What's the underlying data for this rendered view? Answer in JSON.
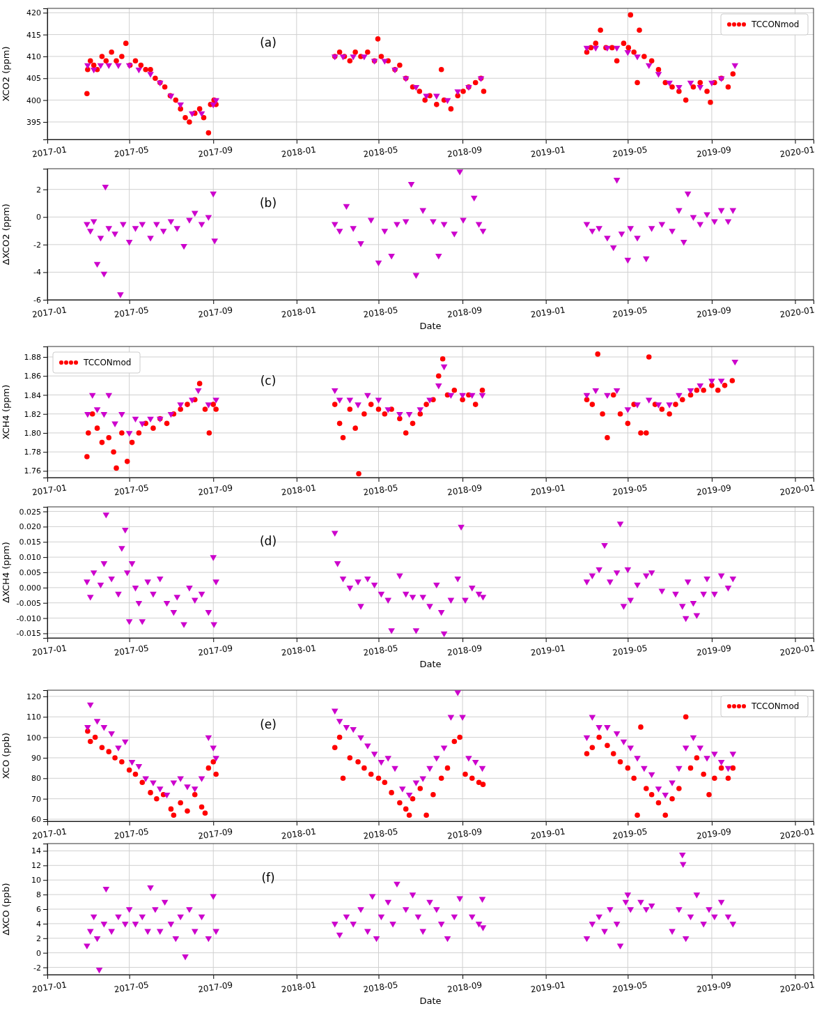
{
  "chart_data": [
    {
      "type": "scatter",
      "ylabel": "XCO2 (ppm)",
      "annotations": [
        "(a)"
      ],
      "xlim": [
        "2017-01-01",
        "2020-01-28"
      ],
      "ylim": [
        391,
        421
      ],
      "xticks": [
        "2017-01",
        "2017-05",
        "2017-09",
        "2018-01",
        "2018-05",
        "2018-09",
        "2019-01",
        "2019-05",
        "2019-09",
        "2020-01"
      ],
      "yticks": [
        395,
        400,
        405,
        410,
        415,
        420
      ],
      "grid": true,
      "legend": "top right",
      "series": [
        {
          "name": "TCCONmod",
          "color": "#ff0000",
          "marker": "circle",
          "x": [
            "2017-02-28",
            "2017-03-01",
            "2017-03-05",
            "2017-03-10",
            "2017-03-15",
            "2017-03-22",
            "2017-03-28",
            "2017-04-05",
            "2017-04-12",
            "2017-04-20",
            "2017-04-26",
            "2017-05-02",
            "2017-05-10",
            "2017-05-18",
            "2017-05-25",
            "2017-06-01",
            "2017-06-08",
            "2017-06-15",
            "2017-06-22",
            "2017-06-30",
            "2017-07-08",
            "2017-07-15",
            "2017-07-22",
            "2017-07-28",
            "2017-08-05",
            "2017-08-12",
            "2017-08-18",
            "2017-08-25",
            "2017-08-28",
            "2017-09-02",
            "2017-09-05",
            "2018-02-26",
            "2018-03-05",
            "2018-03-12",
            "2018-03-20",
            "2018-03-28",
            "2018-04-05",
            "2018-04-15",
            "2018-04-25",
            "2018-04-30",
            "2018-05-05",
            "2018-05-15",
            "2018-05-25",
            "2018-06-01",
            "2018-06-10",
            "2018-06-20",
            "2018-06-30",
            "2018-07-08",
            "2018-07-15",
            "2018-07-25",
            "2018-08-01",
            "2018-08-05",
            "2018-08-15",
            "2018-08-25",
            "2018-09-02",
            "2018-09-10",
            "2018-09-20",
            "2018-09-28",
            "2018-10-02",
            "2019-03-02",
            "2019-03-08",
            "2019-03-15",
            "2019-03-22",
            "2019-03-30",
            "2019-04-08",
            "2019-04-15",
            "2019-04-25",
            "2019-05-02",
            "2019-05-05",
            "2019-05-10",
            "2019-05-15",
            "2019-05-18",
            "2019-05-25",
            "2019-06-05",
            "2019-06-15",
            "2019-06-25",
            "2019-07-05",
            "2019-07-15",
            "2019-07-25",
            "2019-08-05",
            "2019-08-15",
            "2019-08-25",
            "2019-08-30",
            "2019-09-05",
            "2019-09-15",
            "2019-09-25",
            "2019-10-02"
          ],
          "values": [
            401.5,
            407,
            409,
            408,
            407,
            410,
            409,
            411,
            409,
            410,
            413,
            408,
            409,
            408,
            407,
            407,
            405,
            404,
            403,
            401,
            400,
            398,
            396,
            395,
            397,
            398,
            396,
            392.5,
            399,
            400,
            399,
            410,
            411,
            410,
            409,
            411,
            410,
            411,
            409,
            414,
            410,
            409,
            407,
            408,
            405,
            403,
            402,
            400,
            401,
            399,
            407,
            400,
            398,
            401,
            402,
            403,
            404,
            405,
            402,
            411,
            412,
            413,
            416,
            412,
            412,
            409,
            413,
            412,
            419.5,
            411,
            404,
            416,
            410,
            409,
            407,
            404,
            403,
            402,
            400,
            403,
            404,
            402,
            399.5,
            404,
            405,
            403,
            406
          ]
        },
        {
          "color": "#cc00cc",
          "marker": "triangle",
          "x": [
            "2017-03-01",
            "2017-03-10",
            "2017-03-20",
            "2017-04-01",
            "2017-04-15",
            "2017-05-01",
            "2017-05-15",
            "2017-06-01",
            "2017-06-15",
            "2017-07-01",
            "2017-07-15",
            "2017-08-01",
            "2017-08-15",
            "2017-09-01",
            "2017-09-05",
            "2018-02-26",
            "2018-03-10",
            "2018-03-25",
            "2018-04-10",
            "2018-04-25",
            "2018-05-10",
            "2018-05-25",
            "2018-06-10",
            "2018-06-25",
            "2018-07-10",
            "2018-07-25",
            "2018-08-10",
            "2018-08-25",
            "2018-09-10",
            "2018-09-28",
            "2019-03-02",
            "2019-03-15",
            "2019-04-01",
            "2019-04-15",
            "2019-05-01",
            "2019-05-15",
            "2019-06-01",
            "2019-06-15",
            "2019-07-01",
            "2019-07-15",
            "2019-08-01",
            "2019-08-15",
            "2019-09-01",
            "2019-09-15",
            "2019-10-05"
          ],
          "values": [
            408,
            407,
            408,
            408,
            408,
            408,
            407,
            406,
            404,
            401,
            399,
            397,
            397,
            399,
            400,
            410,
            410,
            410,
            410,
            409,
            409,
            407,
            405,
            403,
            401,
            401,
            400,
            402,
            403,
            405,
            412,
            412,
            412,
            412,
            411,
            410,
            408,
            406,
            404,
            403,
            404,
            403,
            404,
            405,
            408
          ]
        }
      ]
    },
    {
      "type": "scatter",
      "ylabel": "ΔXCO2 (ppm)",
      "xlabel": "Date",
      "annotations": [
        "(b)"
      ],
      "xlim": [
        "2017-01-01",
        "2020-01-28"
      ],
      "ylim": [
        -6,
        3.5
      ],
      "xticks": [
        "2017-01",
        "2017-05",
        "2017-09",
        "2018-01",
        "2018-05",
        "2018-09",
        "2019-01",
        "2019-05",
        "2019-09",
        "2020-01"
      ],
      "yticks": [
        -6,
        -4,
        -2,
        0,
        2
      ],
      "grid": true,
      "series": [
        {
          "color": "#cc00cc",
          "marker": "triangle",
          "x": [
            "2017-02-28",
            "2017-03-05",
            "2017-03-10",
            "2017-03-15",
            "2017-03-20",
            "2017-03-25",
            "2017-03-27",
            "2017-04-01",
            "2017-04-10",
            "2017-04-18",
            "2017-04-22",
            "2017-05-01",
            "2017-05-10",
            "2017-05-20",
            "2017-06-01",
            "2017-06-10",
            "2017-06-20",
            "2017-07-01",
            "2017-07-10",
            "2017-07-20",
            "2017-07-28",
            "2017-08-05",
            "2017-08-15",
            "2017-08-25",
            "2017-09-01",
            "2017-09-03",
            "2018-02-26",
            "2018-03-05",
            "2018-03-15",
            "2018-03-25",
            "2018-04-05",
            "2018-04-20",
            "2018-05-01",
            "2018-05-10",
            "2018-05-20",
            "2018-05-28",
            "2018-06-10",
            "2018-06-18",
            "2018-06-25",
            "2018-07-05",
            "2018-07-20",
            "2018-07-28",
            "2018-08-05",
            "2018-08-20",
            "2018-08-28",
            "2018-09-02",
            "2018-09-18",
            "2018-09-25",
            "2018-10-01",
            "2019-03-02",
            "2019-03-10",
            "2019-03-20",
            "2019-04-01",
            "2019-04-10",
            "2019-04-15",
            "2019-04-22",
            "2019-05-01",
            "2019-05-05",
            "2019-05-15",
            "2019-05-28",
            "2019-06-05",
            "2019-06-20",
            "2019-07-05",
            "2019-07-15",
            "2019-07-22",
            "2019-07-28",
            "2019-08-05",
            "2019-08-15",
            "2019-08-25",
            "2019-09-05",
            "2019-09-15",
            "2019-09-25",
            "2019-10-02"
          ],
          "values": [
            -0.5,
            -1,
            -0.3,
            -3.4,
            -1.5,
            -4.1,
            2.2,
            -0.8,
            -1.2,
            -5.6,
            -0.5,
            -1.8,
            -0.8,
            -0.5,
            -1.5,
            -0.5,
            -1,
            -0.3,
            -0.8,
            -2.1,
            -0.2,
            0.3,
            -0.5,
            0,
            1.7,
            -1.7,
            -0.5,
            -1,
            0.8,
            -0.8,
            -1.9,
            -0.2,
            -3.3,
            -1,
            -2.8,
            -0.5,
            -0.3,
            2.4,
            -4.2,
            0.5,
            -0.3,
            -2.8,
            -0.5,
            -1.2,
            3.3,
            -0.2,
            1.4,
            -0.5,
            -1,
            -0.5,
            -1,
            -0.8,
            -1.5,
            -2.2,
            2.7,
            -1.2,
            -3.1,
            -0.8,
            -1.5,
            -3,
            -0.8,
            -0.5,
            -1,
            0.5,
            -1.8,
            1.7,
            0,
            -0.5,
            0.2,
            -0.3,
            0.5,
            -0.3,
            0.5
          ]
        }
      ]
    },
    {
      "type": "scatter",
      "ylabel": "XCH4 (ppm)",
      "annotations": [
        "(c)"
      ],
      "xlim": [
        "2017-01-01",
        "2020-01-28"
      ],
      "ylim": [
        1.753,
        1.891
      ],
      "xticks": [
        "2017-01",
        "2017-05",
        "2017-09",
        "2018-01",
        "2018-05",
        "2018-09",
        "2019-01",
        "2019-05",
        "2019-09",
        "2020-01"
      ],
      "yticks": [
        1.76,
        1.78,
        {
          "value": 1.8,
          "label": "1.80"
        },
        1.82,
        1.84,
        1.86,
        1.88
      ],
      "grid": true,
      "legend": "top left",
      "series": [
        {
          "name": "TCCONmod",
          "color": "#ff0000",
          "marker": "circle",
          "x": [
            "2017-02-28",
            "2017-03-02",
            "2017-03-08",
            "2017-03-15",
            "2017-03-22",
            "2017-04-01",
            "2017-04-08",
            "2017-04-12",
            "2017-04-20",
            "2017-04-28",
            "2017-05-05",
            "2017-05-15",
            "2017-05-25",
            "2017-06-05",
            "2017-06-15",
            "2017-06-25",
            "2017-07-05",
            "2017-07-15",
            "2017-07-25",
            "2017-08-05",
            "2017-08-12",
            "2017-08-20",
            "2017-08-26",
            "2017-09-01",
            "2017-09-05",
            "2018-02-26",
            "2018-03-05",
            "2018-03-10",
            "2018-03-20",
            "2018-03-28",
            "2018-04-02",
            "2018-04-10",
            "2018-04-20",
            "2018-05-01",
            "2018-05-10",
            "2018-05-20",
            "2018-06-01",
            "2018-06-10",
            "2018-06-20",
            "2018-07-01",
            "2018-07-10",
            "2018-07-20",
            "2018-07-28",
            "2018-08-03",
            "2018-08-10",
            "2018-08-20",
            "2018-09-01",
            "2018-09-10",
            "2018-09-20",
            "2018-09-30",
            "2019-03-02",
            "2019-03-10",
            "2019-03-18",
            "2019-03-25",
            "2019-04-01",
            "2019-04-10",
            "2019-04-20",
            "2019-05-01",
            "2019-05-10",
            "2019-05-20",
            "2019-05-28",
            "2019-06-01",
            "2019-06-10",
            "2019-06-20",
            "2019-07-01",
            "2019-07-10",
            "2019-07-20",
            "2019-08-01",
            "2019-08-10",
            "2019-08-20",
            "2019-09-01",
            "2019-09-10",
            "2019-09-20",
            "2019-10-01"
          ],
          "values": [
            1.775,
            1.8,
            1.82,
            1.805,
            1.79,
            1.795,
            1.78,
            1.763,
            1.8,
            1.77,
            1.79,
            1.8,
            1.81,
            1.805,
            1.815,
            1.81,
            1.82,
            1.825,
            1.83,
            1.835,
            1.852,
            1.825,
            1.8,
            1.83,
            1.825,
            1.83,
            1.81,
            1.795,
            1.825,
            1.805,
            1.757,
            1.82,
            1.83,
            1.825,
            1.82,
            1.825,
            1.815,
            1.8,
            1.81,
            1.82,
            1.83,
            1.835,
            1.86,
            1.878,
            1.84,
            1.845,
            1.835,
            1.84,
            1.83,
            1.845,
            1.835,
            1.83,
            1.883,
            1.82,
            1.795,
            1.84,
            1.82,
            1.81,
            1.83,
            1.8,
            1.8,
            1.88,
            1.83,
            1.825,
            1.82,
            1.83,
            1.835,
            1.84,
            1.845,
            1.845,
            1.85,
            1.845,
            1.85,
            1.855
          ]
        },
        {
          "color": "#cc00cc",
          "marker": "triangle",
          "x": [
            "2017-03-01",
            "2017-03-08",
            "2017-03-15",
            "2017-03-25",
            "2017-04-01",
            "2017-04-10",
            "2017-04-20",
            "2017-05-01",
            "2017-05-10",
            "2017-05-20",
            "2017-06-01",
            "2017-06-15",
            "2017-07-01",
            "2017-07-15",
            "2017-08-01",
            "2017-08-10",
            "2017-08-25",
            "2017-09-05",
            "2018-02-26",
            "2018-03-05",
            "2018-03-20",
            "2018-04-01",
            "2018-04-15",
            "2018-05-01",
            "2018-05-15",
            "2018-06-01",
            "2018-06-15",
            "2018-07-01",
            "2018-07-15",
            "2018-07-28",
            "2018-08-05",
            "2018-08-15",
            "2018-09-01",
            "2018-09-15",
            "2018-09-30",
            "2019-03-02",
            "2019-03-15",
            "2019-04-01",
            "2019-04-15",
            "2019-05-01",
            "2019-05-15",
            "2019-06-01",
            "2019-06-15",
            "2019-07-01",
            "2019-07-15",
            "2019-08-01",
            "2019-08-15",
            "2019-09-01",
            "2019-09-15",
            "2019-10-05"
          ],
          "values": [
            1.82,
            1.84,
            1.825,
            1.82,
            1.84,
            1.81,
            1.82,
            1.8,
            1.815,
            1.81,
            1.815,
            1.815,
            1.82,
            1.83,
            1.835,
            1.845,
            1.83,
            1.835,
            1.845,
            1.835,
            1.835,
            1.83,
            1.84,
            1.835,
            1.825,
            1.82,
            1.82,
            1.825,
            1.835,
            1.85,
            1.87,
            1.84,
            1.84,
            1.84,
            1.84,
            1.84,
            1.845,
            1.84,
            1.845,
            1.825,
            1.83,
            1.835,
            1.83,
            1.83,
            1.84,
            1.845,
            1.85,
            1.855,
            1.855,
            1.875
          ]
        }
      ]
    },
    {
      "type": "scatter",
      "ylabel": "ΔXCH4 (ppm)",
      "xlabel": "Date",
      "annotations": [
        "(d)"
      ],
      "xlim": [
        "2017-01-01",
        "2020-01-28"
      ],
      "ylim": [
        -0.0165,
        0.0265
      ],
      "xticks": [
        "2017-01",
        "2017-05",
        "2017-09",
        "2018-01",
        "2018-05",
        "2018-09",
        "2019-01",
        "2019-05",
        "2019-09",
        "2020-01"
      ],
      "yticks": [
        {
          "value": -0.015,
          "label": "-0.015"
        },
        {
          "value": -0.01,
          "label": "-0.010"
        },
        {
          "value": -0.005,
          "label": "-0.005"
        },
        {
          "value": 0,
          "label": "0.000"
        },
        {
          "value": 0.005,
          "label": "0.005"
        },
        {
          "value": 0.01,
          "label": "0.010"
        },
        {
          "value": 0.015,
          "label": "0.015"
        },
        {
          "value": 0.02,
          "label": "0.020"
        },
        {
          "value": 0.025,
          "label": "0.025"
        }
      ],
      "grid": true,
      "series": [
        {
          "color": "#cc00cc",
          "marker": "triangle",
          "x": [
            "2017-02-28",
            "2017-03-05",
            "2017-03-10",
            "2017-03-20",
            "2017-03-25",
            "2017-03-28",
            "2017-04-05",
            "2017-04-15",
            "2017-04-20",
            "2017-04-25",
            "2017-04-28",
            "2017-05-01",
            "2017-05-05",
            "2017-05-10",
            "2017-05-15",
            "2017-05-20",
            "2017-05-28",
            "2017-06-05",
            "2017-06-15",
            "2017-06-25",
            "2017-07-05",
            "2017-07-10",
            "2017-07-20",
            "2017-07-28",
            "2017-08-05",
            "2017-08-15",
            "2017-08-25",
            "2017-09-01",
            "2017-09-02",
            "2017-09-05",
            "2018-02-26",
            "2018-03-02",
            "2018-03-10",
            "2018-03-20",
            "2018-04-01",
            "2018-04-05",
            "2018-04-15",
            "2018-04-25",
            "2018-05-05",
            "2018-05-15",
            "2018-05-20",
            "2018-06-01",
            "2018-06-10",
            "2018-06-20",
            "2018-06-25",
            "2018-07-05",
            "2018-07-15",
            "2018-07-25",
            "2018-08-01",
            "2018-08-05",
            "2018-08-15",
            "2018-08-25",
            "2018-08-30",
            "2018-09-05",
            "2018-09-15",
            "2018-09-25",
            "2018-10-01",
            "2019-03-02",
            "2019-03-10",
            "2019-03-20",
            "2019-03-28",
            "2019-04-05",
            "2019-04-15",
            "2019-04-20",
            "2019-04-25",
            "2019-05-01",
            "2019-05-05",
            "2019-05-15",
            "2019-05-28",
            "2019-06-05",
            "2019-06-20",
            "2019-07-10",
            "2019-07-20",
            "2019-07-25",
            "2019-07-28",
            "2019-08-05",
            "2019-08-10",
            "2019-08-20",
            "2019-08-25",
            "2019-09-05",
            "2019-09-15",
            "2019-09-25",
            "2019-10-02"
          ],
          "values": [
            0.002,
            -0.003,
            0.005,
            0.001,
            0.008,
            0.024,
            0.003,
            -0.002,
            0.013,
            0.019,
            0.005,
            -0.011,
            0.008,
            0,
            -0.005,
            -0.011,
            0.002,
            -0.002,
            0.003,
            -0.005,
            -0.008,
            -0.003,
            -0.012,
            0,
            -0.004,
            -0.002,
            -0.008,
            0.01,
            -0.012,
            0.002,
            0.018,
            0.008,
            0.003,
            0,
            0.002,
            -0.006,
            0.003,
            0.001,
            -0.002,
            -0.004,
            -0.014,
            0.004,
            -0.002,
            -0.003,
            -0.014,
            -0.003,
            -0.006,
            0.001,
            -0.008,
            -0.015,
            -0.004,
            0.003,
            0.02,
            -0.004,
            0,
            -0.002,
            -0.003,
            0.002,
            0.004,
            0.006,
            0.014,
            0.002,
            0.005,
            0.021,
            -0.006,
            0.006,
            -0.004,
            0.001,
            0.004,
            0.005,
            -0.001,
            -0.002,
            -0.006,
            -0.01,
            0.002,
            -0.005,
            -0.009,
            -0.002,
            0.003,
            -0.002,
            0.004,
            0,
            0.003
          ]
        }
      ]
    },
    {
      "type": "scatter",
      "ylabel": "XCO (ppb)",
      "annotations": [
        "(e)"
      ],
      "xlim": [
        "2017-01-01",
        "2020-01-28"
      ],
      "ylim": [
        59,
        123
      ],
      "xticks": [
        "2017-01",
        "2017-05",
        "2017-09",
        "2018-01",
        "2018-05",
        "2018-09",
        "2019-01",
        "2019-05",
        "2019-09",
        "2020-01"
      ],
      "yticks": [
        60,
        70,
        80,
        90,
        100,
        110,
        120
      ],
      "grid": true,
      "legend": "top right",
      "series": [
        {
          "name": "TCCONmod",
          "color": "#ff0000",
          "marker": "circle",
          "x": [
            "2017-03-01",
            "2017-03-05",
            "2017-03-12",
            "2017-03-22",
            "2017-04-01",
            "2017-04-10",
            "2017-04-20",
            "2017-05-01",
            "2017-05-10",
            "2017-05-20",
            "2017-06-01",
            "2017-06-10",
            "2017-06-20",
            "2017-07-01",
            "2017-07-05",
            "2017-07-15",
            "2017-07-25",
            "2017-08-05",
            "2017-08-15",
            "2017-08-20",
            "2017-08-25",
            "2017-09-01",
            "2017-09-05",
            "2018-02-26",
            "2018-03-05",
            "2018-03-10",
            "2018-03-20",
            "2018-04-01",
            "2018-04-10",
            "2018-04-20",
            "2018-05-01",
            "2018-05-10",
            "2018-05-20",
            "2018-06-01",
            "2018-06-10",
            "2018-06-15",
            "2018-06-20",
            "2018-07-01",
            "2018-07-10",
            "2018-07-20",
            "2018-08-01",
            "2018-08-10",
            "2018-08-20",
            "2018-08-28",
            "2018-09-05",
            "2018-09-15",
            "2018-09-25",
            "2018-10-01",
            "2019-03-02",
            "2019-03-10",
            "2019-03-20",
            "2019-04-01",
            "2019-04-10",
            "2019-04-20",
            "2019-05-01",
            "2019-05-10",
            "2019-05-15",
            "2019-05-20",
            "2019-05-28",
            "2019-06-05",
            "2019-06-15",
            "2019-06-25",
            "2019-07-05",
            "2019-07-15",
            "2019-07-25",
            "2019-08-01",
            "2019-08-10",
            "2019-08-20",
            "2019-08-28",
            "2019-09-05",
            "2019-09-15",
            "2019-09-25",
            "2019-10-02"
          ],
          "values": [
            103,
            98,
            100,
            95,
            93,
            90,
            88,
            84,
            82,
            78,
            73,
            70,
            72,
            65,
            62,
            68,
            64,
            72,
            66,
            63,
            85,
            88,
            82,
            95,
            100,
            80,
            90,
            88,
            85,
            82,
            80,
            78,
            73,
            68,
            65,
            62,
            70,
            75,
            62,
            72,
            80,
            85,
            98,
            100,
            82,
            80,
            78,
            77,
            92,
            95,
            100,
            96,
            92,
            88,
            85,
            80,
            62,
            105,
            75,
            72,
            68,
            62,
            70,
            75,
            110,
            85,
            90,
            82,
            72,
            80,
            85,
            80,
            85
          ]
        },
        {
          "color": "#cc00cc",
          "marker": "triangle",
          "x": [
            "2017-03-01",
            "2017-03-05",
            "2017-03-15",
            "2017-03-25",
            "2017-04-05",
            "2017-04-15",
            "2017-04-25",
            "2017-05-05",
            "2017-05-15",
            "2017-05-25",
            "2017-06-05",
            "2017-06-15",
            "2017-06-25",
            "2017-07-05",
            "2017-07-15",
            "2017-07-25",
            "2017-08-05",
            "2017-08-15",
            "2017-08-25",
            "2017-09-01",
            "2017-09-05",
            "2018-02-26",
            "2018-03-05",
            "2018-03-15",
            "2018-03-25",
            "2018-04-05",
            "2018-04-15",
            "2018-04-25",
            "2018-05-05",
            "2018-05-15",
            "2018-05-25",
            "2018-06-05",
            "2018-06-15",
            "2018-06-25",
            "2018-07-05",
            "2018-07-15",
            "2018-07-25",
            "2018-08-05",
            "2018-08-15",
            "2018-08-25",
            "2018-09-01",
            "2018-09-10",
            "2018-09-20",
            "2018-09-30",
            "2019-03-02",
            "2019-03-10",
            "2019-03-20",
            "2019-04-01",
            "2019-04-15",
            "2019-04-25",
            "2019-05-05",
            "2019-05-15",
            "2019-05-25",
            "2019-06-05",
            "2019-06-15",
            "2019-06-25",
            "2019-07-05",
            "2019-07-15",
            "2019-07-25",
            "2019-08-05",
            "2019-08-15",
            "2019-08-25",
            "2019-09-05",
            "2019-09-15",
            "2019-09-25",
            "2019-10-02"
          ],
          "values": [
            105,
            116,
            108,
            105,
            102,
            95,
            98,
            88,
            86,
            80,
            78,
            75,
            72,
            78,
            80,
            76,
            75,
            80,
            100,
            95,
            90,
            113,
            108,
            105,
            104,
            100,
            96,
            92,
            88,
            90,
            85,
            75,
            72,
            78,
            80,
            85,
            90,
            95,
            110,
            122,
            110,
            90,
            88,
            85,
            100,
            110,
            105,
            105,
            102,
            98,
            95,
            90,
            85,
            82,
            75,
            72,
            78,
            85,
            95,
            100,
            95,
            90,
            92,
            88,
            85,
            92
          ]
        }
      ]
    },
    {
      "type": "scatter",
      "ylabel": "ΔXCO (ppb)",
      "xlabel": "Date",
      "annotations": [
        "(f)"
      ],
      "xlim": [
        "2017-01-01",
        "2020-01-28"
      ],
      "ylim": [
        -3,
        15
      ],
      "xticks": [
        "2017-01",
        "2017-05",
        "2017-09",
        "2018-01",
        "2018-05",
        "2018-09",
        "2019-01",
        "2019-05",
        "2019-09",
        "2020-01"
      ],
      "yticks": [
        -2,
        0,
        2,
        4,
        6,
        8,
        10,
        12,
        14
      ],
      "grid": true,
      "series": [
        {
          "color": "#cc00cc",
          "marker": "triangle",
          "x": [
            "2017-02-28",
            "2017-03-05",
            "2017-03-10",
            "2017-03-15",
            "2017-03-18",
            "2017-03-25",
            "2017-03-28",
            "2017-04-05",
            "2017-04-15",
            "2017-04-25",
            "2017-05-01",
            "2017-05-10",
            "2017-05-20",
            "2017-05-28",
            "2017-06-01",
            "2017-06-08",
            "2017-06-15",
            "2017-06-22",
            "2017-07-01",
            "2017-07-08",
            "2017-07-15",
            "2017-07-22",
            "2017-07-28",
            "2017-08-05",
            "2017-08-15",
            "2017-08-25",
            "2017-09-01",
            "2017-09-05",
            "2018-02-26",
            "2018-03-05",
            "2018-03-15",
            "2018-03-25",
            "2018-04-05",
            "2018-04-15",
            "2018-04-22",
            "2018-04-28",
            "2018-05-05",
            "2018-05-15",
            "2018-05-22",
            "2018-05-28",
            "2018-06-10",
            "2018-06-20",
            "2018-06-28",
            "2018-07-05",
            "2018-07-15",
            "2018-07-25",
            "2018-08-01",
            "2018-08-10",
            "2018-08-20",
            "2018-08-28",
            "2018-09-15",
            "2018-09-25",
            "2018-09-30",
            "2018-10-01",
            "2019-03-02",
            "2019-03-10",
            "2019-03-20",
            "2019-03-28",
            "2019-04-05",
            "2019-04-15",
            "2019-04-20",
            "2019-04-28",
            "2019-05-01",
            "2019-05-05",
            "2019-05-20",
            "2019-05-28",
            "2019-06-05",
            "2019-07-05",
            "2019-07-15",
            "2019-07-20",
            "2019-07-21",
            "2019-07-25",
            "2019-08-01",
            "2019-08-10",
            "2019-08-20",
            "2019-08-28",
            "2019-09-05",
            "2019-09-15",
            "2019-09-25",
            "2019-10-02"
          ],
          "values": [
            1,
            3,
            5,
            2,
            -2.3,
            4,
            8.8,
            3,
            5,
            4,
            6,
            4,
            5,
            3,
            9,
            6,
            3,
            7,
            4,
            2,
            5,
            -0.5,
            6,
            3,
            5,
            2,
            7.8,
            3,
            4,
            2.5,
            5,
            4,
            6,
            3,
            7.8,
            2,
            5,
            7,
            4,
            9.5,
            6,
            8,
            5,
            3,
            7,
            6,
            4,
            2,
            5,
            7.5,
            5,
            4,
            7.4,
            3.5,
            2,
            4,
            5,
            3,
            6,
            4,
            1,
            7,
            8,
            6,
            7,
            6,
            6.5,
            3,
            6,
            13.5,
            12.2,
            2,
            5,
            8,
            4,
            6,
            5,
            7,
            5,
            4
          ]
        }
      ]
    }
  ]
}
